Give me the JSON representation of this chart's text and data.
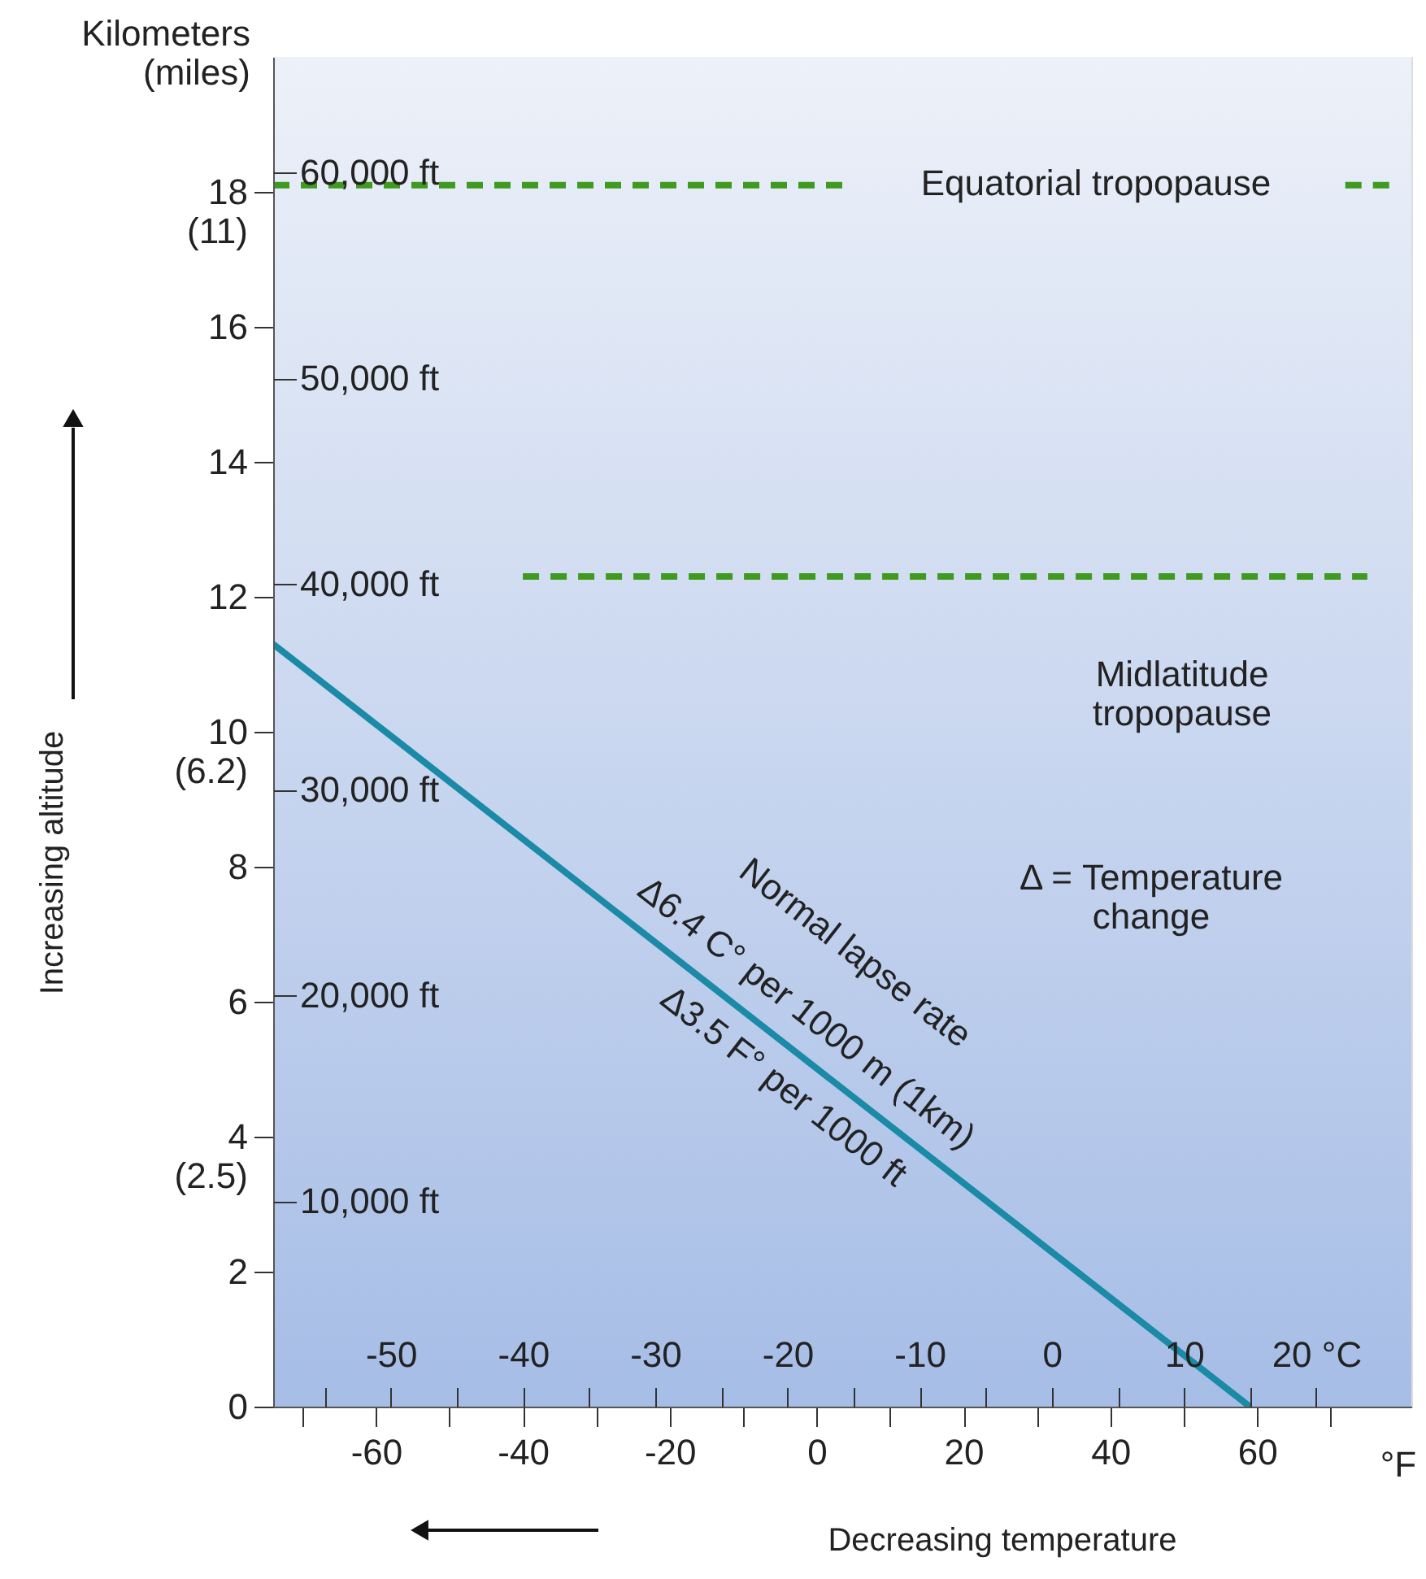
{
  "chart_data": {
    "type": "line",
    "xlabel": "Decreasing temperature",
    "ylabel": "Increasing altitude",
    "xlim": [
      -74,
      81
    ],
    "xticks": [
      {
        "value": -70,
        "label": null
      },
      -60,
      {
        "value": -50,
        "label": null
      },
      -40,
      {
        "value": -30,
        "label": null
      },
      -20,
      {
        "value": -10,
        "label": null
      },
      0,
      {
        "value": 10,
        "label": null
      },
      20,
      {
        "value": 30,
        "label": null
      },
      40,
      {
        "value": 50,
        "label": null
      },
      60,
      {
        "value": 70,
        "label": null
      }
    ],
    "ylim": [
      0,
      20
    ],
    "yticks": [
      0,
      2,
      {
        "value": 4,
        "label": "4\n(2.5)"
      },
      6,
      8,
      {
        "value": 10,
        "label": "10\n(6.2)"
      },
      12,
      14,
      16,
      {
        "value": 18,
        "label": "18\n(11)"
      }
    ],
    "x2lim": [
      -58.9,
      27.2
    ],
    "x2ticks": [
      {
        "value": -55,
        "label": null
      },
      -50,
      {
        "value": -45,
        "label": null
      },
      -40,
      {
        "value": -35,
        "label": null
      },
      -30,
      {
        "value": -25,
        "label": null
      },
      -20,
      {
        "value": -15,
        "label": null
      },
      -10,
      {
        "value": -5,
        "label": null
      },
      0,
      {
        "value": 5,
        "label": null
      },
      10,
      {
        "value": 15,
        "label": null
      },
      {
        "value": 20,
        "label": "20 °C"
      }
    ],
    "y2lim": [
      0,
      65617
    ],
    "y2ticks": [
      {
        "value": 10000,
        "label": "10,000 ft"
      },
      {
        "value": 20000,
        "label": "20,000 ft"
      },
      {
        "value": 30000,
        "label": "30,000 ft"
      },
      {
        "value": 40000,
        "label": "40,000 ft"
      },
      {
        "value": 50000,
        "label": "50,000 ft"
      },
      {
        "value": 60000,
        "label": "60,000 ft"
      }
    ],
    "series": [
      {
        "color": "#1b8aa6",
        "x": [
          -74,
          59
        ],
        "values": [
          11.3,
          0
        ]
      },
      {
        "line_style": "dashed",
        "color": "#3f9a1f",
        "x": [
          -74,
          4
        ],
        "values": [
          18.1,
          18.1
        ]
      },
      {
        "line_style": "dashed",
        "color": "#3f9a1f",
        "x": [
          72,
          78
        ],
        "values": [
          18.1,
          18.1
        ]
      },
      {
        "line_style": "dashed",
        "color": "#3f9a1f",
        "x": [
          -40,
          75
        ],
        "values": [
          12.3,
          12.3
        ]
      }
    ],
    "annotations": [
      "Equatorial tropopause",
      "Midlatitude\ntropopause",
      "Normal lapse rate",
      "Δ6.4 C° per 1000 m (1km)",
      "Δ3.5 F° per 1000 ft",
      "Δ = Temperature\nchange",
      "Kilometers\n(miles)",
      "°F"
    ]
  }
}
